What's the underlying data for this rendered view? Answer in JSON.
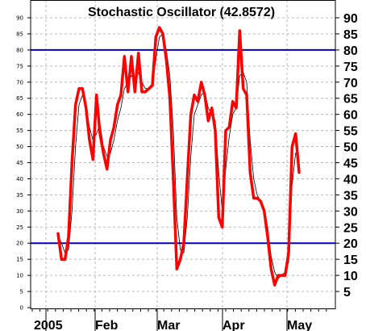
{
  "chart_data": {
    "type": "line",
    "title": "Stochastic Oscillator (42.8572)",
    "ylim": [
      0,
      90
    ],
    "yticks_left": [
      0,
      5,
      10,
      15,
      20,
      25,
      30,
      35,
      40,
      45,
      50,
      55,
      60,
      65,
      70,
      75,
      80,
      85,
      90
    ],
    "yticks_right": [
      5,
      10,
      15,
      20,
      25,
      30,
      35,
      40,
      45,
      50,
      55,
      60,
      65,
      70,
      75,
      80,
      85,
      90
    ],
    "x_labels": [
      "2005",
      "Feb",
      "Mar",
      "Apr",
      "May"
    ],
    "reference_lines": [
      20,
      80
    ],
    "grid": true,
    "colors": {
      "main_line": "#ff0000",
      "signal_line": "#000000",
      "reference": "#0000cc"
    },
    "series": [
      {
        "values": [
          23,
          15,
          15,
          22,
          45,
          63,
          68,
          68,
          62,
          52,
          46,
          66,
          54,
          48,
          43,
          52,
          56,
          63,
          66,
          78,
          67,
          78,
          67,
          79,
          67,
          67,
          68,
          69,
          84,
          87,
          85,
          77,
          65,
          40,
          12,
          15,
          20,
          40,
          60,
          66,
          64,
          70,
          66,
          58,
          62,
          55,
          28,
          25,
          55,
          56,
          64,
          62,
          86,
          68,
          66,
          42,
          34,
          34,
          33,
          30,
          22,
          12,
          7,
          10,
          10,
          10,
          17,
          50,
          54,
          42
        ]
      },
      {
        "values": [
          22,
          20,
          17,
          18,
          30,
          50,
          63,
          66,
          63,
          56,
          52,
          54,
          57,
          50,
          47,
          48,
          52,
          58,
          62,
          68,
          70,
          72,
          71,
          73,
          70,
          68,
          68,
          69,
          77,
          84,
          85,
          80,
          72,
          55,
          28,
          18,
          17,
          28,
          47,
          60,
          63,
          66,
          67,
          62,
          60,
          58,
          42,
          30,
          43,
          53,
          60,
          62,
          72,
          73,
          70,
          52,
          40,
          35,
          33,
          31,
          25,
          16,
          11,
          9,
          10,
          11,
          14,
          38,
          48,
          46
        ]
      }
    ]
  }
}
